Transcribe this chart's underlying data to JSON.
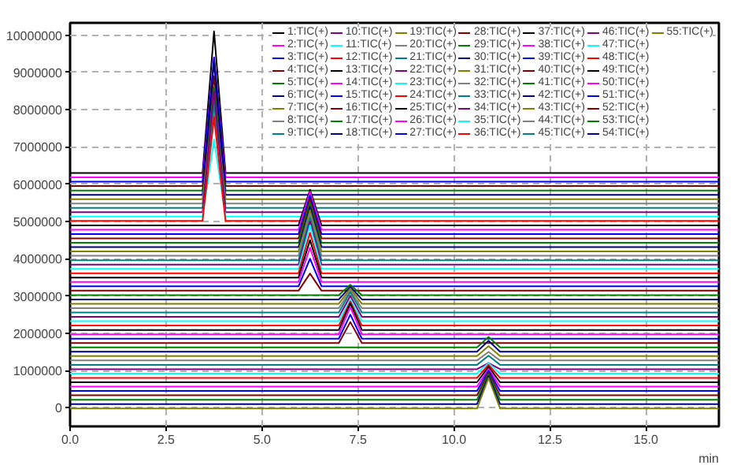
{
  "chart_data": {
    "type": "line",
    "xlabel": "min",
    "xlim": [
      0,
      16.9
    ],
    "ylim": [
      -500000,
      10330000
    ],
    "xticks": [
      {
        "value": 0,
        "label": "0.0"
      },
      2.5,
      {
        "value": 5,
        "label": "5.0"
      },
      7.5,
      {
        "value": 10,
        "label": "10.0"
      },
      12.5,
      {
        "value": 15,
        "label": "15.0"
      }
    ],
    "yticks": [
      0,
      1000000,
      2000000,
      3000000,
      4000000,
      5000000,
      6000000,
      7000000,
      8000000,
      9000000,
      10000000
    ],
    "grid": true,
    "legend": "top right",
    "line_style": "solid",
    "marker": "none",
    "series": [
      {
        "name": "1:TIC(+)",
        "color": "#000000",
        "x": [
          0,
          3.45,
          3.75,
          4.05,
          16.9
        ],
        "values": [
          6300000,
          6300000,
          10100000,
          6300000,
          6300000
        ]
      },
      {
        "name": "2:TIC(+)",
        "color": "#ff00ff",
        "x": [
          0,
          3.45,
          3.75,
          4.05,
          16.9
        ],
        "values": [
          6183000,
          6183000,
          9400000,
          6183000,
          6183000
        ]
      },
      {
        "name": "3:TIC(+)",
        "color": "#0000ff",
        "x": [
          0,
          3.45,
          3.75,
          4.05,
          16.9
        ],
        "values": [
          6066000,
          6066000,
          9400000,
          6066000,
          6066000
        ]
      },
      {
        "name": "4:TIC(+)",
        "color": "#800000",
        "x": [
          0,
          3.45,
          3.75,
          4.05,
          16.9
        ],
        "values": [
          5949000,
          5949000,
          8900000,
          5949000,
          5949000
        ]
      },
      {
        "name": "5:TIC(+)",
        "color": "#008000",
        "x": [
          0,
          3.45,
          3.75,
          4.05,
          16.9
        ],
        "values": [
          5832000,
          5832000,
          8600000,
          5832000,
          5832000
        ]
      },
      {
        "name": "6:TIC(+)",
        "color": "#000080",
        "x": [
          0,
          3.45,
          3.75,
          4.05,
          16.9
        ],
        "values": [
          5715000,
          5715000,
          9300000,
          5715000,
          5715000
        ]
      },
      {
        "name": "7:TIC(+)",
        "color": "#808000",
        "x": [
          0,
          3.45,
          3.75,
          4.05,
          16.9
        ],
        "values": [
          5598000,
          5598000,
          8300000,
          5598000,
          5598000
        ]
      },
      {
        "name": "8:TIC(+)",
        "color": "#808080",
        "x": [
          0,
          3.45,
          3.75,
          4.05,
          16.9
        ],
        "values": [
          5481000,
          5481000,
          8000000,
          5481000,
          5481000
        ]
      },
      {
        "name": "9:TIC(+)",
        "color": "#008080",
        "x": [
          0,
          3.45,
          3.75,
          4.05,
          16.9
        ],
        "values": [
          5364000,
          5364000,
          8200000,
          5364000,
          5364000
        ]
      },
      {
        "name": "10:TIC(+)",
        "color": "#800080",
        "x": [
          0,
          3.45,
          3.75,
          4.05,
          16.9
        ],
        "values": [
          5247000,
          5247000,
          8500000,
          5247000,
          5247000
        ]
      },
      {
        "name": "11:TIC(+)",
        "color": "#00ffff",
        "x": [
          0,
          3.45,
          3.75,
          4.05,
          16.9
        ],
        "values": [
          5130000,
          5130000,
          7200000,
          5130000,
          5130000
        ]
      },
      {
        "name": "12:TIC(+)",
        "color": "#ff0000",
        "x": [
          0,
          3.45,
          3.75,
          4.05,
          16.9
        ],
        "values": [
          5013000,
          5013000,
          7800000,
          5013000,
          5013000
        ]
      },
      {
        "name": "13:TIC(+)",
        "color": "#000000",
        "x": [
          0,
          5.95,
          6.25,
          6.55,
          16.9
        ],
        "values": [
          4896000,
          4896000,
          5850000,
          4896000,
          4896000
        ]
      },
      {
        "name": "14:TIC(+)",
        "color": "#ff00ff",
        "x": [
          0,
          5.95,
          6.25,
          6.55,
          16.9
        ],
        "values": [
          4779000,
          4779000,
          5800000,
          4779000,
          4779000
        ]
      },
      {
        "name": "15:TIC(+)",
        "color": "#0000ff",
        "x": [
          0,
          5.95,
          6.25,
          6.55,
          16.9
        ],
        "values": [
          4662000,
          4662000,
          5700000,
          4662000,
          4662000
        ]
      },
      {
        "name": "16:TIC(+)",
        "color": "#800000",
        "x": [
          0,
          5.95,
          6.25,
          6.55,
          16.9
        ],
        "values": [
          4545000,
          4545000,
          5600000,
          4545000,
          4545000
        ]
      },
      {
        "name": "17:TIC(+)",
        "color": "#008000",
        "x": [
          0,
          5.95,
          6.25,
          6.55,
          16.9
        ],
        "values": [
          4428000,
          4428000,
          5500000,
          4428000,
          4428000
        ]
      },
      {
        "name": "18:TIC(+)",
        "color": "#000080",
        "x": [
          0,
          5.95,
          6.25,
          6.55,
          16.9
        ],
        "values": [
          4311000,
          4311000,
          5400000,
          4311000,
          4311000
        ]
      },
      {
        "name": "19:TIC(+)",
        "color": "#808000",
        "x": [
          0,
          5.95,
          6.25,
          6.55,
          16.9
        ],
        "values": [
          4194000,
          4194000,
          5300000,
          4194000,
          4194000
        ]
      },
      {
        "name": "20:TIC(+)",
        "color": "#808080",
        "x": [
          0,
          5.95,
          6.25,
          6.55,
          16.9
        ],
        "values": [
          4077000,
          4077000,
          5200000,
          4077000,
          4077000
        ]
      },
      {
        "name": "21:TIC(+)",
        "color": "#008080",
        "x": [
          0,
          5.95,
          6.25,
          6.55,
          16.9
        ],
        "values": [
          3960000,
          3960000,
          5100000,
          3960000,
          3960000
        ]
      },
      {
        "name": "22:TIC(+)",
        "color": "#800080",
        "x": [
          0,
          5.95,
          6.25,
          6.55,
          16.9
        ],
        "values": [
          3843000,
          3843000,
          5000000,
          3843000,
          3843000
        ]
      },
      {
        "name": "23:TIC(+)",
        "color": "#00ffff",
        "x": [
          0,
          5.95,
          6.25,
          6.55,
          16.9
        ],
        "values": [
          3726000,
          3726000,
          4900000,
          3726000,
          3726000
        ]
      },
      {
        "name": "24:TIC(+)",
        "color": "#ff0000",
        "x": [
          0,
          5.95,
          6.25,
          6.55,
          16.9
        ],
        "values": [
          3609000,
          3609000,
          4700000,
          3609000,
          3609000
        ]
      },
      {
        "name": "25:TIC(+)",
        "color": "#000000",
        "x": [
          0,
          5.95,
          6.25,
          6.55,
          16.9
        ],
        "values": [
          3492000,
          3492000,
          4500000,
          3492000,
          3492000
        ]
      },
      {
        "name": "26:TIC(+)",
        "color": "#ff00ff",
        "x": [
          0,
          5.95,
          6.25,
          6.55,
          16.9
        ],
        "values": [
          3375000,
          3375000,
          4300000,
          3375000,
          3375000
        ]
      },
      {
        "name": "27:TIC(+)",
        "color": "#0000ff",
        "x": [
          0,
          5.95,
          6.25,
          6.55,
          16.9
        ],
        "values": [
          3258000,
          3258000,
          4000000,
          3258000,
          3258000
        ]
      },
      {
        "name": "28:TIC(+)",
        "color": "#800000",
        "x": [
          0,
          5.95,
          6.25,
          6.55,
          16.9
        ],
        "values": [
          3141000,
          3141000,
          3600000,
          3141000,
          3141000
        ]
      },
      {
        "name": "29:TIC(+)",
        "color": "#008000",
        "x": [
          0,
          7.0,
          7.3,
          7.6,
          16.9
        ],
        "values": [
          3024000,
          3024000,
          3300000,
          3024000,
          3024000
        ]
      },
      {
        "name": "30:TIC(+)",
        "color": "#000080",
        "x": [
          0,
          7.0,
          7.3,
          7.6,
          16.9
        ],
        "values": [
          2907000,
          2907000,
          3250000,
          2907000,
          2907000
        ]
      },
      {
        "name": "31:TIC(+)",
        "color": "#808000",
        "x": [
          0,
          7.0,
          7.3,
          7.6,
          16.9
        ],
        "values": [
          2790000,
          2790000,
          3200000,
          2790000,
          2790000
        ]
      },
      {
        "name": "32:TIC(+)",
        "color": "#808080",
        "x": [
          0,
          7.0,
          7.3,
          7.6,
          16.9
        ],
        "values": [
          2673000,
          2673000,
          3150000,
          2673000,
          2673000
        ]
      },
      {
        "name": "33:TIC(+)",
        "color": "#008080",
        "x": [
          0,
          7.0,
          7.3,
          7.6,
          16.9
        ],
        "values": [
          2556000,
          2556000,
          3100000,
          2556000,
          2556000
        ]
      },
      {
        "name": "34:TIC(+)",
        "color": "#800080",
        "x": [
          0,
          7.0,
          7.3,
          7.6,
          16.9
        ],
        "values": [
          2439000,
          2439000,
          3000000,
          2439000,
          2439000
        ]
      },
      {
        "name": "35:TIC(+)",
        "color": "#00ffff",
        "x": [
          0,
          7.0,
          7.3,
          7.6,
          16.9
        ],
        "values": [
          2322000,
          2322000,
          2900000,
          2322000,
          2322000
        ]
      },
      {
        "name": "36:TIC(+)",
        "color": "#ff0000",
        "x": [
          0,
          7.0,
          7.3,
          7.6,
          16.9
        ],
        "values": [
          2205000,
          2205000,
          2850000,
          2205000,
          2205000
        ]
      },
      {
        "name": "37:TIC(+)",
        "color": "#000000",
        "x": [
          0,
          7.0,
          7.3,
          7.6,
          16.9
        ],
        "values": [
          2088000,
          2088000,
          2800000,
          2088000,
          2088000
        ]
      },
      {
        "name": "38:TIC(+)",
        "color": "#ff00ff",
        "x": [
          0,
          7.0,
          7.3,
          7.6,
          16.9
        ],
        "values": [
          1971000,
          1971000,
          2700000,
          1971000,
          1971000
        ]
      },
      {
        "name": "39:TIC(+)",
        "color": "#0000ff",
        "x": [
          0,
          7.0,
          7.3,
          7.6,
          16.9
        ],
        "values": [
          1854000,
          1854000,
          2500000,
          1854000,
          1854000
        ]
      },
      {
        "name": "40:TIC(+)",
        "color": "#800000",
        "x": [
          0,
          7.0,
          7.3,
          7.6,
          16.9
        ],
        "values": [
          1737000,
          1737000,
          2300000,
          1737000,
          1737000
        ]
      },
      {
        "name": "41:TIC(+)",
        "color": "#008000",
        "x": [
          0,
          10.6,
          10.9,
          11.2,
          16.9
        ],
        "values": [
          1620000,
          1620000,
          1900000,
          1620000,
          1620000
        ]
      },
      {
        "name": "42:TIC(+)",
        "color": "#000080",
        "x": [
          0,
          10.6,
          10.9,
          11.2,
          16.9
        ],
        "values": [
          1503000,
          1503000,
          1800000,
          1503000,
          1503000
        ]
      },
      {
        "name": "43:TIC(+)",
        "color": "#808000",
        "x": [
          0,
          10.6,
          10.9,
          11.2,
          16.9
        ],
        "values": [
          1386000,
          1386000,
          1650000,
          1386000,
          1386000
        ]
      },
      {
        "name": "44:TIC(+)",
        "color": "#808080",
        "x": [
          0,
          10.6,
          10.9,
          11.2,
          16.9
        ],
        "values": [
          1269000,
          1269000,
          1500000,
          1269000,
          1269000
        ]
      },
      {
        "name": "45:TIC(+)",
        "color": "#008080",
        "x": [
          0,
          10.6,
          10.9,
          11.2,
          16.9
        ],
        "values": [
          1152000,
          1152000,
          1400000,
          1152000,
          1152000
        ]
      },
      {
        "name": "46:TIC(+)",
        "color": "#800080",
        "x": [
          0,
          10.6,
          10.9,
          11.2,
          16.9
        ],
        "values": [
          1035000,
          1035000,
          1200000,
          1035000,
          1035000
        ]
      },
      {
        "name": "47:TIC(+)",
        "color": "#00ffff",
        "x": [
          0,
          10.6,
          10.9,
          11.2,
          16.9
        ],
        "values": [
          918000,
          918000,
          1200000,
          918000,
          918000
        ]
      },
      {
        "name": "48:TIC(+)",
        "color": "#ff0000",
        "x": [
          0,
          10.6,
          10.9,
          11.2,
          16.9
        ],
        "values": [
          801000,
          801000,
          1150000,
          801000,
          801000
        ]
      },
      {
        "name": "49:TIC(+)",
        "color": "#000000",
        "x": [
          0,
          10.6,
          10.9,
          11.2,
          16.9
        ],
        "values": [
          684000,
          684000,
          1100000,
          684000,
          684000
        ]
      },
      {
        "name": "50:TIC(+)",
        "color": "#ff00ff",
        "x": [
          0,
          10.6,
          10.9,
          11.2,
          16.9
        ],
        "values": [
          567000,
          567000,
          1050000,
          567000,
          567000
        ]
      },
      {
        "name": "51:TIC(+)",
        "color": "#0000ff",
        "x": [
          0,
          10.6,
          10.9,
          11.2,
          16.9
        ],
        "values": [
          450000,
          450000,
          1000000,
          450000,
          450000
        ]
      },
      {
        "name": "52:TIC(+)",
        "color": "#800000",
        "x": [
          0,
          10.6,
          10.9,
          11.2,
          16.9
        ],
        "values": [
          333000,
          333000,
          950000,
          333000,
          333000
        ]
      },
      {
        "name": "53:TIC(+)",
        "color": "#008000",
        "x": [
          0,
          10.6,
          10.9,
          11.2,
          16.9
        ],
        "values": [
          216000,
          216000,
          900000,
          216000,
          216000
        ]
      },
      {
        "name": "54:TIC(+)",
        "color": "#000080",
        "x": [
          0,
          10.6,
          10.9,
          11.2,
          16.9
        ],
        "values": [
          99000,
          99000,
          850000,
          99000,
          99000
        ]
      },
      {
        "name": "55:TIC(+)",
        "color": "#808000",
        "x": [
          0,
          10.6,
          10.9,
          11.2,
          16.9
        ],
        "values": [
          -18000,
          -18000,
          800000,
          -18000,
          -18000
        ]
      }
    ]
  }
}
